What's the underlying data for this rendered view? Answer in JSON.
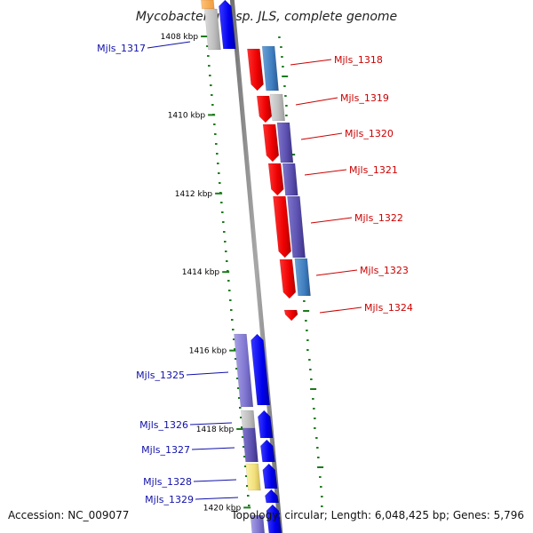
{
  "title": "Mycobacterium sp. JLS, complete genome",
  "accession": "Accession: NC_009077",
  "summary": "Topology: circular; Length: 6,048,425 bp; Genes: 5,796",
  "colors": {
    "forward_label": "#cc0000",
    "reverse_label": "#1010aa",
    "tick": "#1b7a1b",
    "backbone": "#888888"
  },
  "kbp_ticks": [
    {
      "label": "1408 kbp",
      "pos": 1408
    },
    {
      "label": "1410 kbp",
      "pos": 1410
    },
    {
      "label": "1412 kbp",
      "pos": 1412
    },
    {
      "label": "1414 kbp",
      "pos": 1414
    },
    {
      "label": "1416 kbp",
      "pos": 1416
    },
    {
      "label": "1418 kbp",
      "pos": 1418
    },
    {
      "label": "1420 kbp",
      "pos": 1420
    }
  ],
  "forward_genes": [
    {
      "label": "Mjls_1318"
    },
    {
      "label": "Mjls_1319"
    },
    {
      "label": "Mjls_1320"
    },
    {
      "label": "Mjls_1321"
    },
    {
      "label": "Mjls_1322"
    },
    {
      "label": "Mjls_1323"
    },
    {
      "label": "Mjls_1324"
    }
  ],
  "reverse_genes": [
    {
      "label": "Mjls_1317"
    },
    {
      "label": "Mjls_1325"
    },
    {
      "label": "Mjls_1326"
    },
    {
      "label": "Mjls_1327"
    },
    {
      "label": "Mjls_1328"
    },
    {
      "label": "Mjls_1329"
    }
  ]
}
